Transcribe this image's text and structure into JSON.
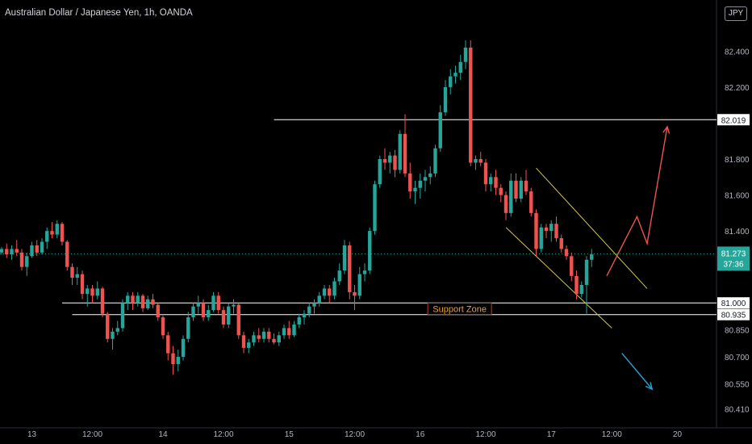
{
  "header": {
    "title": "Australian Dollar / Japanese Yen, 1h, OANDA",
    "currency": "JPY"
  },
  "price_tag": {
    "price": "81.273",
    "countdown": "37:36"
  },
  "annotation": {
    "support_label": "Support Zone"
  },
  "colors": {
    "up": "#26a69a",
    "down": "#ef5350",
    "background": "#000000",
    "level_line": "#ffffff",
    "channel": "#d4c84a",
    "projection_up": "#ef5350",
    "projection_down": "#29a3d0"
  },
  "chart_data": {
    "type": "candlestick",
    "title": "Australian Dollar / Japanese Yen, 1h, OANDA",
    "ylim": [
      80.35,
      82.55
    ],
    "y_ticks": [
      "82.400",
      "82.200",
      "81.800",
      "81.600",
      "81.400",
      "80.850",
      "80.700",
      "80.550",
      "80.410"
    ],
    "y_tick_values": [
      82.4,
      82.2,
      81.8,
      81.6,
      81.4,
      80.85,
      80.7,
      80.55,
      80.41
    ],
    "x_ticks": [
      "13",
      "12:00",
      "14",
      "12:00",
      "15",
      "12:00",
      "16",
      "12:00",
      "17",
      "12:00",
      "20"
    ],
    "x_tick_bars": [
      6,
      18,
      32,
      44,
      57,
      70,
      83,
      96,
      109,
      121,
      134
    ],
    "labeled_levels": [
      {
        "label": "82.019",
        "value": 82.019
      },
      {
        "label": "81.000",
        "value": 81.0
      },
      {
        "label": "80.935",
        "value": 80.935
      }
    ],
    "current_price": 81.273,
    "candles": [
      [
        81.28,
        81.31,
        81.27,
        81.3
      ],
      [
        81.3,
        81.33,
        81.25,
        81.27
      ],
      [
        81.27,
        81.32,
        81.24,
        81.3
      ],
      [
        81.3,
        81.35,
        81.26,
        81.28
      ],
      [
        81.28,
        81.3,
        81.18,
        81.2
      ],
      [
        81.2,
        81.28,
        81.15,
        81.26
      ],
      [
        81.26,
        81.34,
        81.25,
        81.32
      ],
      [
        81.32,
        81.35,
        81.26,
        81.28
      ],
      [
        81.28,
        81.36,
        81.27,
        81.34
      ],
      [
        81.34,
        81.42,
        81.3,
        81.4
      ],
      [
        81.4,
        81.45,
        81.36,
        81.38
      ],
      [
        81.38,
        81.46,
        81.36,
        81.44
      ],
      [
        81.44,
        81.45,
        81.32,
        81.34
      ],
      [
        81.34,
        81.35,
        81.18,
        81.2
      ],
      [
        81.2,
        81.22,
        81.1,
        81.14
      ],
      [
        81.14,
        81.2,
        81.1,
        81.16
      ],
      [
        81.16,
        81.18,
        81.02,
        81.05
      ],
      [
        81.05,
        81.1,
        80.98,
        81.08
      ],
      [
        81.08,
        81.1,
        81.0,
        81.04
      ],
      [
        81.04,
        81.12,
        81.02,
        81.08
      ],
      [
        81.08,
        81.09,
        80.92,
        80.94
      ],
      [
        80.94,
        80.95,
        80.78,
        80.8
      ],
      [
        80.8,
        80.86,
        80.74,
        80.84
      ],
      [
        80.84,
        80.9,
        80.82,
        80.86
      ],
      [
        80.86,
        81.02,
        80.84,
        81.0
      ],
      [
        81.0,
        81.06,
        80.96,
        81.04
      ],
      [
        81.04,
        81.06,
        80.96,
        81.0
      ],
      [
        81.0,
        81.06,
        80.98,
        81.04
      ],
      [
        81.04,
        81.05,
        80.95,
        80.97
      ],
      [
        80.97,
        81.04,
        80.96,
        81.02
      ],
      [
        81.02,
        81.05,
        80.97,
        80.99
      ],
      [
        80.99,
        81.0,
        80.9,
        80.92
      ],
      [
        80.92,
        80.93,
        80.8,
        80.82
      ],
      [
        80.82,
        80.84,
        80.68,
        80.72
      ],
      [
        80.72,
        80.76,
        80.6,
        80.66
      ],
      [
        80.66,
        80.74,
        80.62,
        80.7
      ],
      [
        80.7,
        80.82,
        80.68,
        80.8
      ],
      [
        80.8,
        80.95,
        80.78,
        80.92
      ],
      [
        80.92,
        81.0,
        80.9,
        80.98
      ],
      [
        80.98,
        81.04,
        80.94,
        81.0
      ],
      [
        81.0,
        81.02,
        80.9,
        80.92
      ],
      [
        80.92,
        80.99,
        80.9,
        80.96
      ],
      [
        80.96,
        81.06,
        80.95,
        81.04
      ],
      [
        81.04,
        81.06,
        80.94,
        80.96
      ],
      [
        80.96,
        80.98,
        80.86,
        80.88
      ],
      [
        80.88,
        81.0,
        80.86,
        80.98
      ],
      [
        80.98,
        81.02,
        80.94,
        80.99
      ],
      [
        80.99,
        81.0,
        80.8,
        80.82
      ],
      [
        80.82,
        80.84,
        80.72,
        80.75
      ],
      [
        80.75,
        80.8,
        80.72,
        80.78
      ],
      [
        80.78,
        80.84,
        80.76,
        80.82
      ],
      [
        80.82,
        80.86,
        80.78,
        80.8
      ],
      [
        80.8,
        80.86,
        80.78,
        80.84
      ],
      [
        80.84,
        80.86,
        80.78,
        80.8
      ],
      [
        80.8,
        80.83,
        80.77,
        80.78
      ],
      [
        80.78,
        80.84,
        80.76,
        80.82
      ],
      [
        80.82,
        80.88,
        80.8,
        80.86
      ],
      [
        80.86,
        80.9,
        80.8,
        80.82
      ],
      [
        80.82,
        80.9,
        80.81,
        80.88
      ],
      [
        80.88,
        80.94,
        80.86,
        80.92
      ],
      [
        80.92,
        80.96,
        80.88,
        80.94
      ],
      [
        80.94,
        81.0,
        80.92,
        80.98
      ],
      [
        80.98,
        81.02,
        80.94,
        81.0
      ],
      [
        81.0,
        81.06,
        80.98,
        81.04
      ],
      [
        81.04,
        81.1,
        81.02,
        81.08
      ],
      [
        81.08,
        81.1,
        81.0,
        81.04
      ],
      [
        81.04,
        81.14,
        81.02,
        81.12
      ],
      [
        81.12,
        81.22,
        81.1,
        81.18
      ],
      [
        81.18,
        81.35,
        81.16,
        81.32
      ],
      [
        81.32,
        81.34,
        81.02,
        81.06
      ],
      [
        81.06,
        81.1,
        80.96,
        81.04
      ],
      [
        81.04,
        81.2,
        81.02,
        81.16
      ],
      [
        81.16,
        81.22,
        81.12,
        81.18
      ],
      [
        81.18,
        81.42,
        81.16,
        81.4
      ],
      [
        81.4,
        81.68,
        81.38,
        81.66
      ],
      [
        81.66,
        81.82,
        81.64,
        81.8
      ],
      [
        81.8,
        81.86,
        81.74,
        81.78
      ],
      [
        81.78,
        81.84,
        81.72,
        81.82
      ],
      [
        81.82,
        81.85,
        81.7,
        81.74
      ],
      [
        81.74,
        81.96,
        81.72,
        81.94
      ],
      [
        81.94,
        82.05,
        81.7,
        81.72
      ],
      [
        81.72,
        81.78,
        81.58,
        81.62
      ],
      [
        81.62,
        81.68,
        81.55,
        81.64
      ],
      [
        81.64,
        81.72,
        81.58,
        81.68
      ],
      [
        81.68,
        81.74,
        81.62,
        81.7
      ],
      [
        81.7,
        81.76,
        81.66,
        81.72
      ],
      [
        81.72,
        81.88,
        81.7,
        81.86
      ],
      [
        81.86,
        82.1,
        81.84,
        82.06
      ],
      [
        82.06,
        82.24,
        82.04,
        82.2
      ],
      [
        82.2,
        82.3,
        82.16,
        82.26
      ],
      [
        82.26,
        82.32,
        82.22,
        82.28
      ],
      [
        82.28,
        82.38,
        82.24,
        82.34
      ],
      [
        82.34,
        82.46,
        82.3,
        82.42
      ],
      [
        82.42,
        82.46,
        81.76,
        81.78
      ],
      [
        81.78,
        81.82,
        81.74,
        81.8
      ],
      [
        81.8,
        81.84,
        81.76,
        81.78
      ],
      [
        81.78,
        81.8,
        81.62,
        81.66
      ],
      [
        81.66,
        81.72,
        81.62,
        81.7
      ],
      [
        81.7,
        81.74,
        81.6,
        81.64
      ],
      [
        81.64,
        81.66,
        81.56,
        81.6
      ],
      [
        81.6,
        81.62,
        81.46,
        81.5
      ],
      [
        81.5,
        81.72,
        81.48,
        81.68
      ],
      [
        81.68,
        81.72,
        81.56,
        81.58
      ],
      [
        81.58,
        81.7,
        81.56,
        81.68
      ],
      [
        81.68,
        81.74,
        81.6,
        81.62
      ],
      [
        81.62,
        81.64,
        81.48,
        81.5
      ],
      [
        81.5,
        81.52,
        81.26,
        81.3
      ],
      [
        81.3,
        81.44,
        81.28,
        81.42
      ],
      [
        81.42,
        81.44,
        81.36,
        81.4
      ],
      [
        81.4,
        81.46,
        81.34,
        81.44
      ],
      [
        81.44,
        81.48,
        81.34,
        81.36
      ],
      [
        81.36,
        81.38,
        81.28,
        81.3
      ],
      [
        81.3,
        81.32,
        81.24,
        81.26
      ],
      [
        81.26,
        81.28,
        81.12,
        81.15
      ],
      [
        81.15,
        81.18,
        81.02,
        81.05
      ],
      [
        81.05,
        81.12,
        81.03,
        81.1
      ],
      [
        81.1,
        81.26,
        80.94,
        81.24
      ],
      [
        81.24,
        81.3,
        81.2,
        81.27
      ]
    ],
    "projections": [
      {
        "direction": "up",
        "points": [
          [
            120,
            81.15
          ],
          [
            126,
            81.48
          ],
          [
            128,
            81.33
          ],
          [
            132,
            81.98
          ]
        ]
      },
      {
        "direction": "down",
        "points": [
          [
            123,
            80.72
          ],
          [
            129,
            80.52
          ]
        ]
      }
    ],
    "channel": {
      "upper": [
        [
          106,
          81.75
        ],
        [
          128,
          81.08
        ]
      ],
      "lower": [
        [
          100,
          81.42
        ],
        [
          121,
          80.86
        ]
      ]
    },
    "zone": {
      "top": 81.0,
      "bottom": 80.935,
      "label": "Support Zone"
    },
    "resistance_line": {
      "value": 82.019,
      "from_bar": 54
    }
  }
}
